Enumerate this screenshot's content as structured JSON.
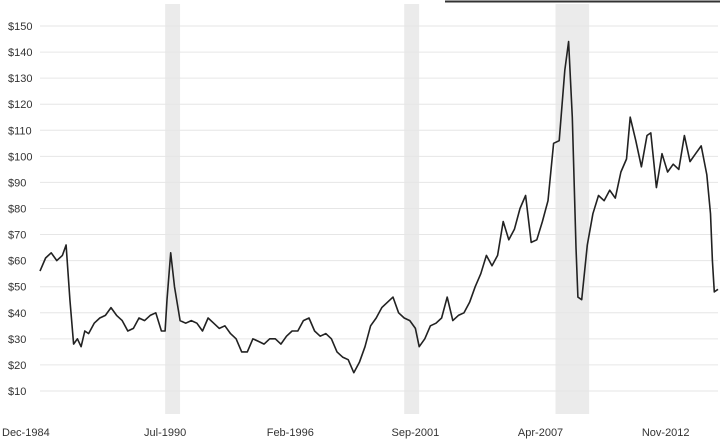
{
  "chart_data": {
    "type": "line",
    "title": "",
    "xlabel": "",
    "ylabel": "",
    "y_tick_labels": [
      "$10",
      "$20",
      "$30",
      "$40",
      "$50",
      "$60",
      "$70",
      "$80",
      "$90",
      "$100",
      "$110",
      "$120",
      "$130",
      "$140",
      "$150"
    ],
    "y_ticks": [
      10,
      20,
      30,
      40,
      50,
      60,
      70,
      80,
      90,
      100,
      110,
      120,
      130,
      140,
      150
    ],
    "ylim": [
      0,
      155
    ],
    "xlim": [
      "1984-12",
      "2015-03"
    ],
    "x_tick_labels": [
      "Dec-1984",
      "Jul-1990",
      "Feb-1996",
      "Sep-2001",
      "Apr-2007",
      "Nov-2012"
    ],
    "x_ticks": [
      "1984-12",
      "1990-07",
      "1996-02",
      "2001-09",
      "2007-04",
      "2012-11"
    ],
    "grid": true,
    "legend": "none",
    "colors": {
      "line": "#222222",
      "recession_band": "#ebebeb",
      "grid": "#e6e6e6",
      "axis_text": "#333333"
    },
    "recession_bands": [
      {
        "start": "1990-07",
        "end": "1991-03"
      },
      {
        "start": "2001-03",
        "end": "2001-11"
      },
      {
        "start": "2007-12",
        "end": "2009-06"
      }
    ],
    "series": [
      {
        "name": "",
        "points": [
          [
            "1984-12",
            56
          ],
          [
            "1985-03",
            61
          ],
          [
            "1985-06",
            63
          ],
          [
            "1985-09",
            60
          ],
          [
            "1985-12",
            62
          ],
          [
            "1986-02",
            66
          ],
          [
            "1986-04",
            45
          ],
          [
            "1986-06",
            28
          ],
          [
            "1986-08",
            30
          ],
          [
            "1986-10",
            27
          ],
          [
            "1986-12",
            33
          ],
          [
            "1987-02",
            32
          ],
          [
            "1987-05",
            36
          ],
          [
            "1987-08",
            38
          ],
          [
            "1987-11",
            39
          ],
          [
            "1988-02",
            42
          ],
          [
            "1988-05",
            39
          ],
          [
            "1988-08",
            37
          ],
          [
            "1988-11",
            33
          ],
          [
            "1989-02",
            34
          ],
          [
            "1989-05",
            38
          ],
          [
            "1989-08",
            37
          ],
          [
            "1989-11",
            39
          ],
          [
            "1990-02",
            40
          ],
          [
            "1990-05",
            33
          ],
          [
            "1990-07",
            33
          ],
          [
            "1990-08",
            45
          ],
          [
            "1990-10",
            63
          ],
          [
            "1990-12",
            50
          ],
          [
            "1991-03",
            37
          ],
          [
            "1991-06",
            36
          ],
          [
            "1991-09",
            37
          ],
          [
            "1991-12",
            36
          ],
          [
            "1992-03",
            33
          ],
          [
            "1992-06",
            38
          ],
          [
            "1992-09",
            36
          ],
          [
            "1992-12",
            34
          ],
          [
            "1993-03",
            35
          ],
          [
            "1993-06",
            32
          ],
          [
            "1993-09",
            30
          ],
          [
            "1993-12",
            25
          ],
          [
            "1994-03",
            25
          ],
          [
            "1994-06",
            30
          ],
          [
            "1994-09",
            29
          ],
          [
            "1994-12",
            28
          ],
          [
            "1995-03",
            30
          ],
          [
            "1995-06",
            30
          ],
          [
            "1995-09",
            28
          ],
          [
            "1995-12",
            31
          ],
          [
            "1996-03",
            33
          ],
          [
            "1996-06",
            33
          ],
          [
            "1996-09",
            37
          ],
          [
            "1996-12",
            38
          ],
          [
            "1997-03",
            33
          ],
          [
            "1997-06",
            31
          ],
          [
            "1997-09",
            32
          ],
          [
            "1997-12",
            30
          ],
          [
            "1998-03",
            25
          ],
          [
            "1998-06",
            23
          ],
          [
            "1998-09",
            22
          ],
          [
            "1998-12",
            17
          ],
          [
            "1999-03",
            21
          ],
          [
            "1999-06",
            27
          ],
          [
            "1999-09",
            35
          ],
          [
            "1999-12",
            38
          ],
          [
            "2000-03",
            42
          ],
          [
            "2000-06",
            44
          ],
          [
            "2000-09",
            46
          ],
          [
            "2000-12",
            40
          ],
          [
            "2001-03",
            38
          ],
          [
            "2001-06",
            37
          ],
          [
            "2001-09",
            34
          ],
          [
            "2001-11",
            27
          ],
          [
            "2002-02",
            30
          ],
          [
            "2002-05",
            35
          ],
          [
            "2002-08",
            36
          ],
          [
            "2002-11",
            38
          ],
          [
            "2003-02",
            46
          ],
          [
            "2003-05",
            37
          ],
          [
            "2003-08",
            39
          ],
          [
            "2003-11",
            40
          ],
          [
            "2004-02",
            44
          ],
          [
            "2004-05",
            50
          ],
          [
            "2004-08",
            55
          ],
          [
            "2004-11",
            62
          ],
          [
            "2005-02",
            58
          ],
          [
            "2005-05",
            62
          ],
          [
            "2005-08",
            75
          ],
          [
            "2005-11",
            68
          ],
          [
            "2006-02",
            72
          ],
          [
            "2006-05",
            80
          ],
          [
            "2006-08",
            85
          ],
          [
            "2006-11",
            67
          ],
          [
            "2007-02",
            68
          ],
          [
            "2007-05",
            75
          ],
          [
            "2007-08",
            83
          ],
          [
            "2007-11",
            105
          ],
          [
            "2008-02",
            106
          ],
          [
            "2008-05",
            133
          ],
          [
            "2008-07",
            144
          ],
          [
            "2008-09",
            115
          ],
          [
            "2008-11",
            65
          ],
          [
            "2008-12",
            46
          ],
          [
            "2009-02",
            45
          ],
          [
            "2009-05",
            66
          ],
          [
            "2009-08",
            78
          ],
          [
            "2009-11",
            85
          ],
          [
            "2010-02",
            83
          ],
          [
            "2010-05",
            87
          ],
          [
            "2010-08",
            84
          ],
          [
            "2010-11",
            94
          ],
          [
            "2011-02",
            99
          ],
          [
            "2011-04",
            115
          ],
          [
            "2011-07",
            106
          ],
          [
            "2011-10",
            96
          ],
          [
            "2012-01",
            108
          ],
          [
            "2012-03",
            109
          ],
          [
            "2012-06",
            88
          ],
          [
            "2012-09",
            101
          ],
          [
            "2012-12",
            94
          ],
          [
            "2013-03",
            97
          ],
          [
            "2013-06",
            95
          ],
          [
            "2013-09",
            108
          ],
          [
            "2013-12",
            98
          ],
          [
            "2014-03",
            101
          ],
          [
            "2014-06",
            104
          ],
          [
            "2014-09",
            93
          ],
          [
            "2014-11",
            78
          ],
          [
            "2014-12",
            60
          ],
          [
            "2015-01",
            48
          ],
          [
            "2015-03",
            49
          ]
        ]
      }
    ]
  }
}
